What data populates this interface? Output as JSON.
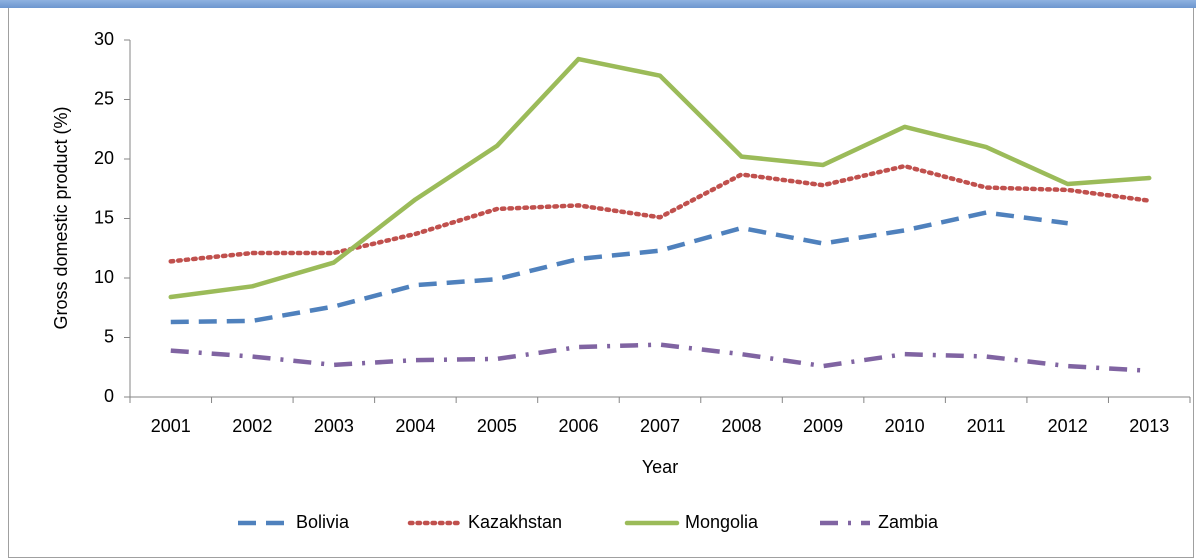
{
  "chart_data": {
    "type": "line",
    "y_label": "Gross domestic product (%)",
    "x_label": "Year",
    "categories": [
      "2001",
      "2002",
      "2003",
      "2004",
      "2005",
      "2006",
      "2007",
      "2008",
      "2009",
      "2010",
      "2011",
      "2012",
      "2013"
    ],
    "ylim": [
      0,
      30
    ],
    "yticks": [
      0,
      5,
      10,
      15,
      20,
      25,
      30
    ],
    "legend": "bottom",
    "series": [
      {
        "name": "Bolivia",
        "color": "#4f81bd",
        "dash": "dash",
        "values": [
          6.3,
          6.4,
          7.6,
          9.4,
          9.9,
          11.6,
          12.3,
          14.2,
          12.9,
          14.0,
          15.5,
          14.6,
          null
        ]
      },
      {
        "name": "Kazakhstan",
        "color": "#c0504d",
        "dash": "dot",
        "values": [
          11.4,
          12.1,
          12.1,
          13.7,
          15.8,
          16.1,
          15.1,
          18.7,
          17.8,
          19.4,
          17.6,
          17.4,
          16.5
        ]
      },
      {
        "name": "Mongolia",
        "color": "#9bbb59",
        "dash": "solid",
        "values": [
          8.4,
          9.3,
          11.3,
          16.6,
          21.1,
          28.4,
          27.0,
          20.2,
          19.5,
          22.7,
          21.0,
          17.9,
          18.4
        ]
      },
      {
        "name": "Zambia",
        "color": "#8064a2",
        "dash": "dashdot",
        "values": [
          3.9,
          3.4,
          2.7,
          3.1,
          3.2,
          4.2,
          4.4,
          3.6,
          2.6,
          3.6,
          3.4,
          2.6,
          2.2
        ]
      }
    ]
  }
}
